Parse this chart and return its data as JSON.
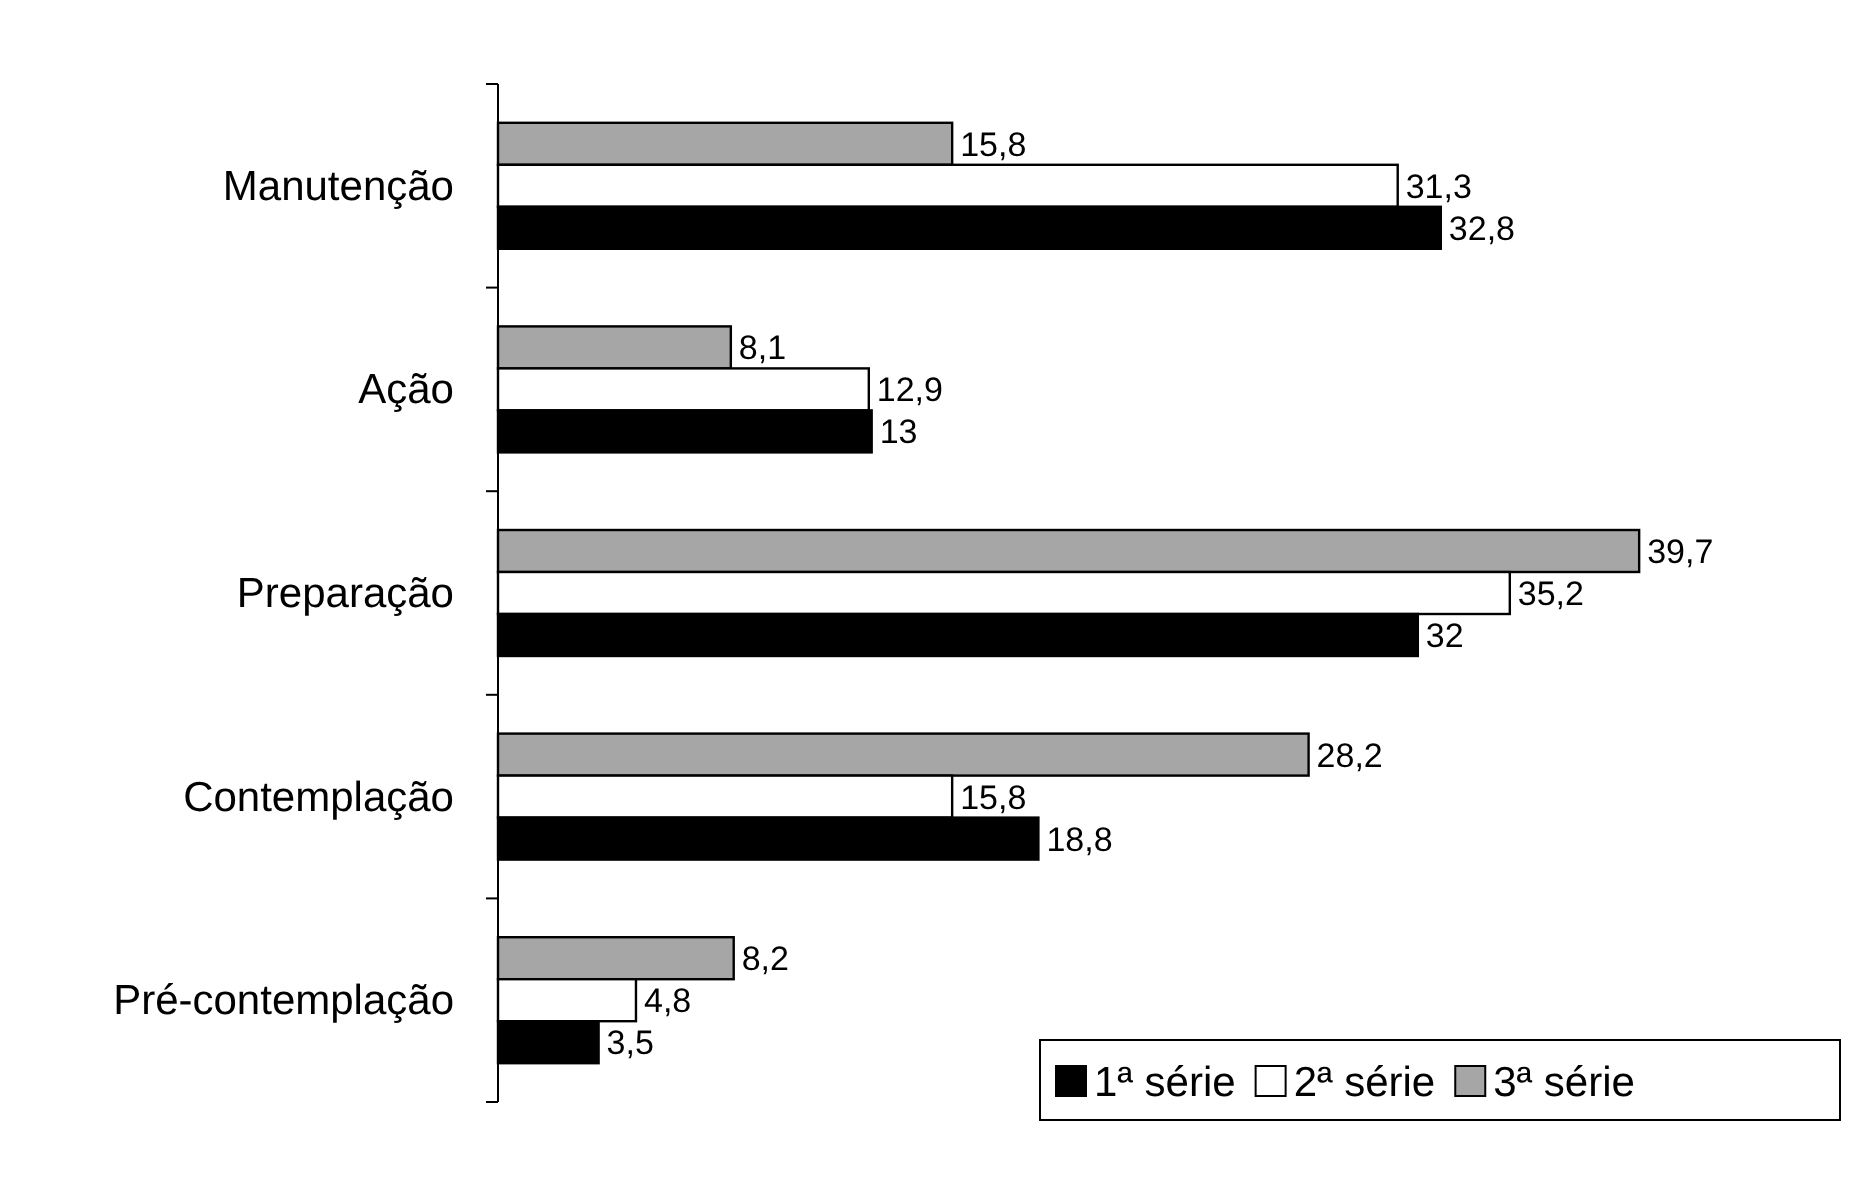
{
  "chart_data": {
    "type": "bar",
    "orientation": "horizontal",
    "categories": [
      "Manutenção",
      "Ação",
      "Preparação",
      "Contemplação",
      "Pré-contemplação"
    ],
    "series": [
      {
        "name": "3ª série",
        "color": "#a6a6a6",
        "values": [
          15.8,
          8.1,
          39.7,
          28.2,
          8.2
        ],
        "value_labels": [
          "15,8",
          "8,1",
          "39,7",
          "28,2",
          "8,2"
        ]
      },
      {
        "name": "2ª série",
        "color": "#ffffff",
        "values": [
          31.3,
          12.9,
          35.2,
          15.8,
          4.8
        ],
        "value_labels": [
          "31,3",
          "12,9",
          "35,2",
          "15,8",
          "4,8"
        ]
      },
      {
        "name": "1ª série",
        "color": "#000000",
        "values": [
          32.8,
          13,
          32,
          18.8,
          3.5
        ],
        "value_labels": [
          "32,8",
          "13",
          "32",
          "18,8",
          "3,5"
        ]
      }
    ],
    "legend": "bottom right"
  }
}
